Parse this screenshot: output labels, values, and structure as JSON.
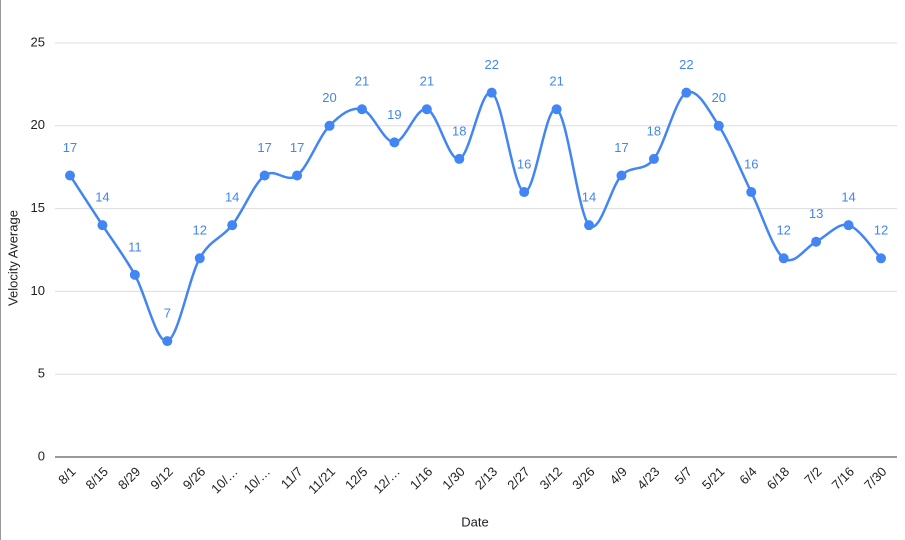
{
  "chart_data": {
    "type": "line",
    "x_label": "Date",
    "y_label": "Velocity Average",
    "categories": [
      "8/1",
      "8/15",
      "8/29",
      "9/12",
      "9/26",
      "10/…",
      "10/…",
      "11/7",
      "11/21",
      "12/5",
      "12/…",
      "1/16",
      "1/30",
      "2/13",
      "2/27",
      "3/12",
      "3/26",
      "4/9",
      "4/23",
      "5/7",
      "5/21",
      "6/4",
      "6/18",
      "7/2",
      "7/16",
      "7/30"
    ],
    "values": [
      17,
      14,
      11,
      7,
      12,
      14,
      17,
      17,
      20,
      21,
      19,
      21,
      18,
      22,
      16,
      21,
      14,
      17,
      18,
      22,
      20,
      16,
      12,
      13,
      14,
      12
    ],
    "color": "#4285f4",
    "ylim": [
      0,
      25
    ],
    "yticks": [
      0,
      5,
      10,
      15,
      20,
      25
    ],
    "grid": true
  }
}
